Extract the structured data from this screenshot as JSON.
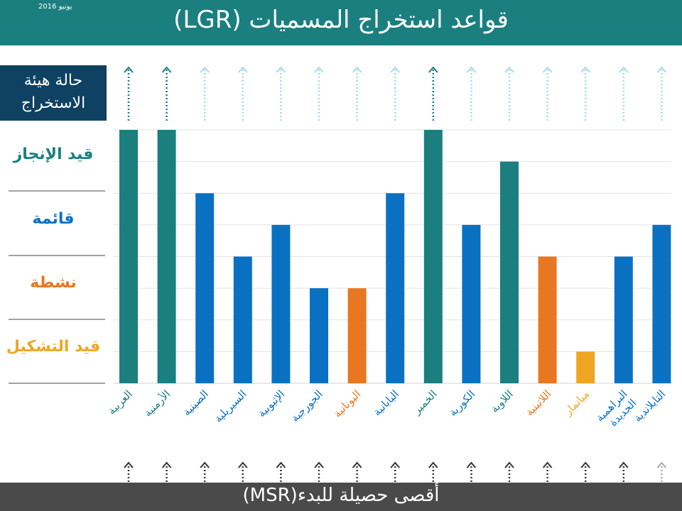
{
  "header": {
    "date": "يونيو 2016",
    "title": "قواعد استخراج المسميات (LGR)"
  },
  "status_box": {
    "line1": "حالة هيئة",
    "line2": "الاستخراج"
  },
  "levels": [
    {
      "key": "in_progress",
      "label": "قيد الإنجاز",
      "color": "#1b7f7f"
    },
    {
      "key": "listed",
      "label": "قائمة",
      "color": "#0a71c2"
    },
    {
      "key": "active",
      "label": "نشطة",
      "color": "#e87722"
    },
    {
      "key": "forming",
      "label": "قيد التشكيل",
      "color": "#efa622"
    }
  ],
  "footer": {
    "label": "أقصى حصيلة للبدء(MSR)"
  },
  "chart_data": {
    "type": "bar",
    "categories": [
      "العربية",
      "الأرمنية",
      "الصينية",
      "السيريلية",
      "الإثيوبية",
      "الجورجية",
      "اليونانية",
      "اليابانية",
      "الخمير",
      "الكورية",
      "اللاوية",
      "اللاتينية",
      "ميانمار",
      "البراهمية الجديدة",
      "التايلاندية"
    ],
    "values": [
      8,
      8,
      6,
      4,
      5,
      3,
      3,
      6,
      8,
      5,
      7,
      4,
      1,
      4,
      5
    ],
    "colors": [
      "#1b7f7f",
      "#1b7f7f",
      "#0a71c2",
      "#0a71c2",
      "#0a71c2",
      "#0a71c2",
      "#e87722",
      "#0a71c2",
      "#1b7f7f",
      "#0a71c2",
      "#1b7f7f",
      "#e87722",
      "#efa622",
      "#0a71c2",
      "#0a71c2"
    ],
    "ylim": [
      0,
      8
    ],
    "grid": true,
    "top_arrow_style": [
      "dark",
      "dark",
      "light",
      "light",
      "light",
      "light",
      "light",
      "light",
      "dark",
      "light",
      "light",
      "light",
      "light",
      "light",
      "light"
    ],
    "bottom_arrow_style": [
      "dark",
      "dark",
      "dark",
      "dark",
      "dark",
      "dark",
      "dark",
      "dark",
      "dark",
      "dark",
      "dark",
      "dark",
      "dark",
      "dark",
      "light"
    ]
  }
}
